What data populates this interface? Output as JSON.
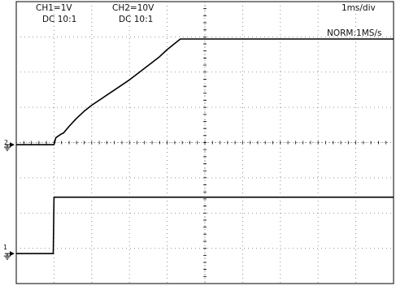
{
  "header": {
    "ch1_scale": "CH1=1V",
    "ch1_coupling": "DC  10:1",
    "ch2_scale": "CH2=10V",
    "ch2_coupling": "DC  10:1",
    "timebase": "1ms/div",
    "acquisition": "NORM:1MS/s"
  },
  "markers": {
    "ch1_label": "1",
    "ch2_label": "2"
  },
  "colors": {
    "trace": "#000000",
    "grid": "#777777",
    "background": "#ffffff"
  },
  "chart_data": {
    "type": "line",
    "title": "",
    "xlabel": "",
    "ylabel": "",
    "grid": true,
    "x_divisions": 10,
    "y_divisions": 8,
    "xlim": [
      0,
      10
    ],
    "ylim": [
      -4,
      4
    ],
    "series": [
      {
        "name": "CH2",
        "ground_div": -0.06,
        "points": [
          [
            0,
            0
          ],
          [
            1.0,
            0
          ],
          [
            1.05,
            0.2
          ],
          [
            1.2,
            0.31
          ],
          [
            1.25,
            0.33
          ],
          [
            1.4,
            0.52
          ],
          [
            1.6,
            0.75
          ],
          [
            1.8,
            0.95
          ],
          [
            2.0,
            1.12
          ],
          [
            2.5,
            1.48
          ],
          [
            3.0,
            1.84
          ],
          [
            3.5,
            2.25
          ],
          [
            3.8,
            2.5
          ],
          [
            4.0,
            2.7
          ],
          [
            4.35,
            3.0
          ],
          [
            5.0,
            3.0
          ],
          [
            6.0,
            3.0
          ],
          [
            7.0,
            3.0
          ],
          [
            8.0,
            3.0
          ],
          [
            9.0,
            3.0
          ],
          [
            10.0,
            3.0
          ]
        ]
      },
      {
        "name": "CH1",
        "ground_div": -3.15,
        "points": [
          [
            0,
            0
          ],
          [
            0.98,
            0
          ],
          [
            1.0,
            1.6
          ],
          [
            2.0,
            1.6
          ],
          [
            3.0,
            1.6
          ],
          [
            4.0,
            1.6
          ],
          [
            5.0,
            1.6
          ],
          [
            6.0,
            1.6
          ],
          [
            7.0,
            1.6
          ],
          [
            8.0,
            1.6
          ],
          [
            9.0,
            1.6
          ],
          [
            10.0,
            1.6
          ]
        ]
      }
    ]
  }
}
